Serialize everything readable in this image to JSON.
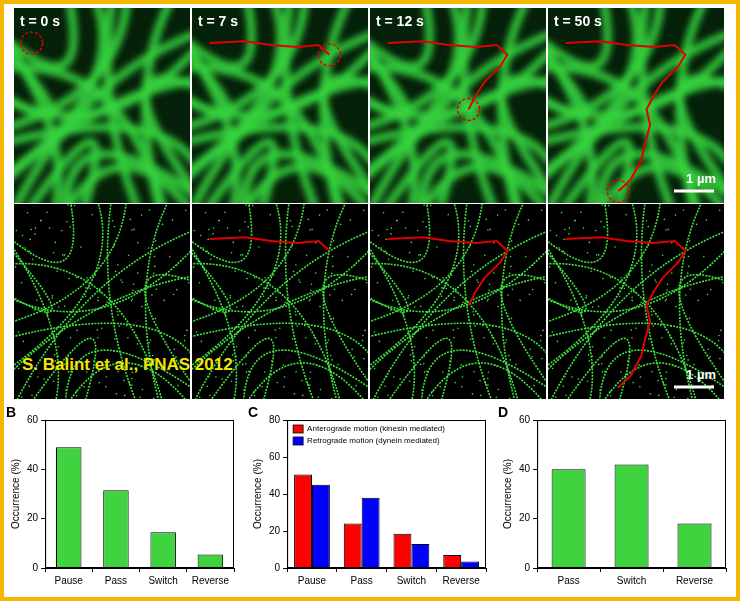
{
  "microscopy": {
    "frames": [
      "t = 0 s",
      "t = 7 s",
      "t = 12 s",
      "t = 50 s"
    ],
    "scale_bar": "1 µm",
    "credit": "S. Balint et al., PNAS 2012"
  },
  "chart_data": [
    {
      "panel": "B",
      "type": "bar",
      "categories": [
        "Pause",
        "Pass",
        "Switch",
        "Reverse"
      ],
      "values": [
        49,
        31.5,
        14.5,
        5.5
      ],
      "color": "#3fd33f",
      "ylabel": "Occurrence (%)",
      "ylim": [
        0,
        60
      ],
      "yticks": [
        0,
        20,
        40,
        60
      ],
      "grid": false
    },
    {
      "panel": "C",
      "type": "bar",
      "categories": [
        "Pause",
        "Pass",
        "Switch",
        "Reverse"
      ],
      "series": [
        {
          "name": "Anterograde motion (kinesin mediated)",
          "color": "#ff0000",
          "values": [
            50.5,
            24,
            18.5,
            7
          ]
        },
        {
          "name": "Retrograde motion (dynein mediated)",
          "color": "#0000ff",
          "values": [
            45,
            38,
            13,
            3.5
          ]
        }
      ],
      "ylabel": "Occurrence (%)",
      "ylim": [
        0,
        80
      ],
      "yticks": [
        0,
        20,
        40,
        60,
        80
      ],
      "grid": false,
      "legend": "upper left"
    },
    {
      "panel": "D",
      "type": "bar",
      "categories": [
        "Pass",
        "Switch",
        "Reverse"
      ],
      "values": [
        40,
        42,
        18
      ],
      "color": "#3fd33f",
      "ylabel": "Occurrence (%)",
      "ylim": [
        0,
        60
      ],
      "yticks": [
        0,
        20,
        40,
        60
      ],
      "grid": false
    }
  ]
}
